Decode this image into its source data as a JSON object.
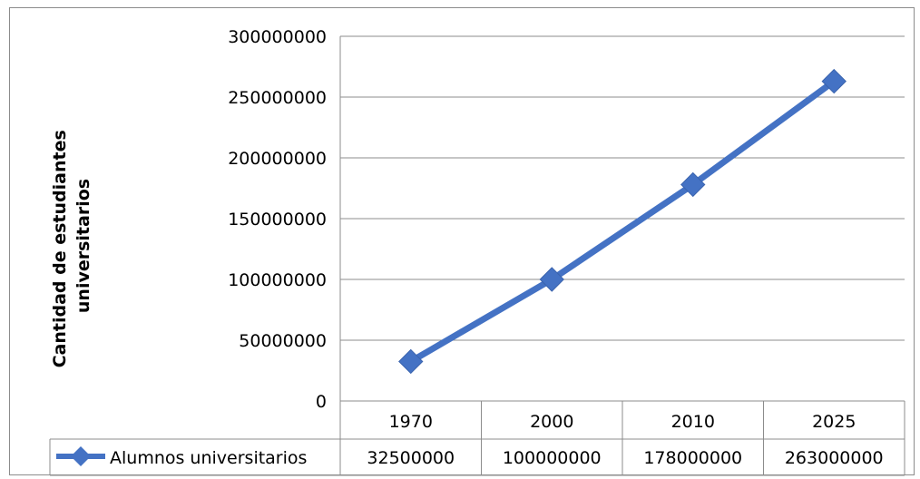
{
  "chart_data": {
    "type": "line",
    "title": "",
    "xlabel": "",
    "ylabel": "Cantidad  de estudiantes universitarios",
    "ylabel_lines": [
      "Cantidad  de estudiantes",
      "universitarios"
    ],
    "categories": [
      "1970",
      "2000",
      "2010",
      "2025"
    ],
    "series": [
      {
        "name": "Alumnos universitarios",
        "values": [
          32500000,
          100000000,
          178000000,
          263000000
        ],
        "value_labels": [
          "32500000",
          "100000000",
          "178000000",
          "263000000"
        ],
        "color": "#4472C4",
        "marker": "diamond"
      }
    ],
    "ylim": [
      0,
      300000000
    ],
    "y_ticks": [
      0,
      50000000,
      100000000,
      150000000,
      200000000,
      250000000,
      300000000
    ],
    "y_tick_labels": [
      "0",
      "50000000",
      "100000000",
      "150000000",
      "200000000",
      "250000000",
      "300000000"
    ],
    "grid": true,
    "legend": "data-table",
    "data_table": true
  }
}
